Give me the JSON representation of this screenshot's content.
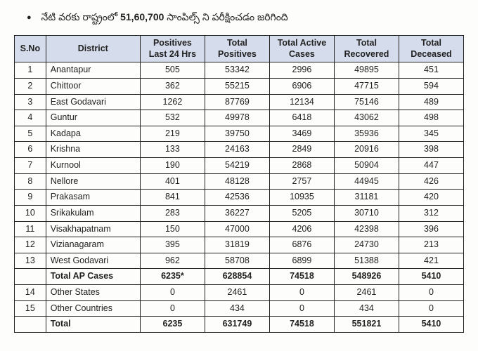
{
  "bullet": {
    "pre": "నేటి వరకు రాష్ట్రంలో ",
    "bold": "51,60,700",
    "post": "  సాంపిల్స్ ని పరీక్షించడం జరిగింది"
  },
  "headers": {
    "sno": "S.No",
    "district": "District",
    "pos24": "Positives Last 24 Hrs",
    "totpos": "Total Positives",
    "active": "Total Active Cases",
    "recov": "Total Recovered",
    "dec": "Total Deceased"
  },
  "rows": [
    {
      "sno": "1",
      "d": "Anantapur",
      "p24": "505",
      "tp": "53342",
      "ac": "2996",
      "tr": "49895",
      "td": "451",
      "bold": false
    },
    {
      "sno": "2",
      "d": "Chittoor",
      "p24": "362",
      "tp": "55215",
      "ac": "6906",
      "tr": "47715",
      "td": "594",
      "bold": false
    },
    {
      "sno": "3",
      "d": "East Godavari",
      "p24": "1262",
      "tp": "87769",
      "ac": "12134",
      "tr": "75146",
      "td": "489",
      "bold": false
    },
    {
      "sno": "4",
      "d": "Guntur",
      "p24": "532",
      "tp": "49978",
      "ac": "6418",
      "tr": "43062",
      "td": "498",
      "bold": false
    },
    {
      "sno": "5",
      "d": "Kadapa",
      "p24": "219",
      "tp": "39750",
      "ac": "3469",
      "tr": "35936",
      "td": "345",
      "bold": false
    },
    {
      "sno": "6",
      "d": "Krishna",
      "p24": "133",
      "tp": "24163",
      "ac": "2849",
      "tr": "20916",
      "td": "398",
      "bold": false
    },
    {
      "sno": "7",
      "d": "Kurnool",
      "p24": "190",
      "tp": "54219",
      "ac": "2868",
      "tr": "50904",
      "td": "447",
      "bold": false
    },
    {
      "sno": "8",
      "d": "Nellore",
      "p24": "401",
      "tp": "48128",
      "ac": "2757",
      "tr": "44945",
      "td": "426",
      "bold": false
    },
    {
      "sno": "9",
      "d": "Prakasam",
      "p24": "841",
      "tp": "42536",
      "ac": "10935",
      "tr": "31181",
      "td": "420",
      "bold": false
    },
    {
      "sno": "10",
      "d": "Srikakulam",
      "p24": "283",
      "tp": "36227",
      "ac": "5205",
      "tr": "30710",
      "td": "312",
      "bold": false
    },
    {
      "sno": "11",
      "d": "Visakhapatnam",
      "p24": "150",
      "tp": "47000",
      "ac": "4206",
      "tr": "42398",
      "td": "396",
      "bold": false
    },
    {
      "sno": "12",
      "d": "Vizianagaram",
      "p24": "395",
      "tp": "31819",
      "ac": "6876",
      "tr": "24730",
      "td": "213",
      "bold": false
    },
    {
      "sno": "13",
      "d": "West Godavari",
      "p24": "962",
      "tp": "58708",
      "ac": "6899",
      "tr": "51388",
      "td": "421",
      "bold": false
    },
    {
      "sno": "",
      "d": "Total AP Cases",
      "p24": "6235*",
      "tp": "628854",
      "ac": "74518",
      "tr": "548926",
      "td": "5410",
      "bold": true
    },
    {
      "sno": "14",
      "d": "Other States",
      "p24": "0",
      "tp": "2461",
      "ac": "0",
      "tr": "2461",
      "td": "0",
      "bold": false
    },
    {
      "sno": "15",
      "d": "Other Countries",
      "p24": "0",
      "tp": "434",
      "ac": "0",
      "tr": "434",
      "td": "0",
      "bold": false
    },
    {
      "sno": "",
      "d": "Total",
      "p24": "6235",
      "tp": "631749",
      "ac": "74518",
      "tr": "551821",
      "td": "5410",
      "bold": true
    }
  ]
}
